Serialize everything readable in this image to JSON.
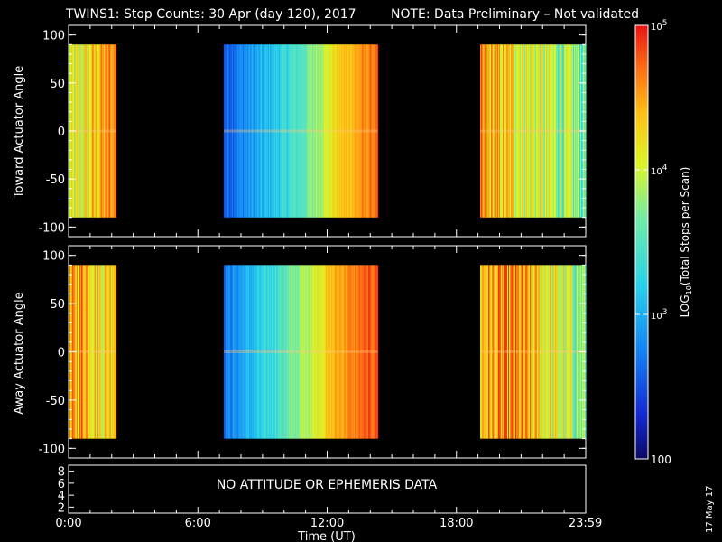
{
  "title": "TWINS1: Stop Counts: 30 Apr (day 120), 2017",
  "note": "NOTE: Data Preliminary – Not validated",
  "note_color": "#ff2020",
  "date_stamp": "17 May 17",
  "chart_data": [
    {
      "type": "heatmap",
      "name": "toward",
      "ylabel": "Toward Actuator Angle",
      "ylim": [
        -110,
        110
      ],
      "yticks": [
        "100",
        "50",
        "0",
        "-50",
        "-100"
      ],
      "data_y_range": [
        -90,
        90
      ],
      "data_intervals_hours": [
        [
          0.0,
          2.2
        ],
        [
          7.2,
          14.35
        ],
        [
          19.1,
          24.0
        ]
      ],
      "profiles": [
        {
          "segment": 0,
          "values_log": [
            3.9,
            4.1,
            4.4,
            4.6
          ]
        },
        {
          "segment": 1,
          "values_log": [
            2.6,
            3.0,
            3.5,
            4.3,
            4.7
          ]
        },
        {
          "segment": 2,
          "values_log": [
            4.4,
            4.2,
            3.9,
            3.6
          ]
        }
      ]
    },
    {
      "type": "heatmap",
      "name": "away",
      "ylabel": "Away Actuator Angle",
      "ylim": [
        -110,
        110
      ],
      "yticks": [
        "100",
        "50",
        "0",
        "-50",
        "-100"
      ],
      "data_y_range": [
        -90,
        90
      ],
      "data_intervals_hours": [
        [
          0.0,
          2.2
        ],
        [
          7.2,
          14.35
        ],
        [
          19.1,
          24.0
        ]
      ],
      "profiles": [
        {
          "segment": 0,
          "values_log": [
            4.3,
            4.6,
            4.2,
            4.5
          ]
        },
        {
          "segment": 1,
          "values_log": [
            2.7,
            3.2,
            3.8,
            4.5,
            4.8
          ]
        },
        {
          "segment": 2,
          "values_log": [
            4.4,
            4.5,
            4.1,
            3.7
          ]
        }
      ]
    }
  ],
  "ephemeris_panel": {
    "yticks": [
      "8",
      "6",
      "4",
      "2"
    ],
    "message": "NO ATTITUDE OR EPHEMERIS DATA"
  },
  "x_axis": {
    "label": "Time (UT)",
    "ticks": [
      "0:00",
      "6:00",
      "12:00",
      "18:00",
      "23:59"
    ],
    "range_hours": [
      0,
      24
    ]
  },
  "colorbar": {
    "label": "LOG10(Total Stops per Scan)",
    "label_main": "LOG",
    "label_sub": "10",
    "label_rest": "(Total Stops per Scan)",
    "range_log": [
      2,
      5
    ],
    "ticks": [
      {
        "text": "100",
        "log": 2
      },
      {
        "text": "10",
        "sup": "3",
        "log": 3
      },
      {
        "text": "10",
        "sup": "4",
        "log": 4
      },
      {
        "text": "10",
        "sup": "5",
        "log": 5
      }
    ]
  }
}
